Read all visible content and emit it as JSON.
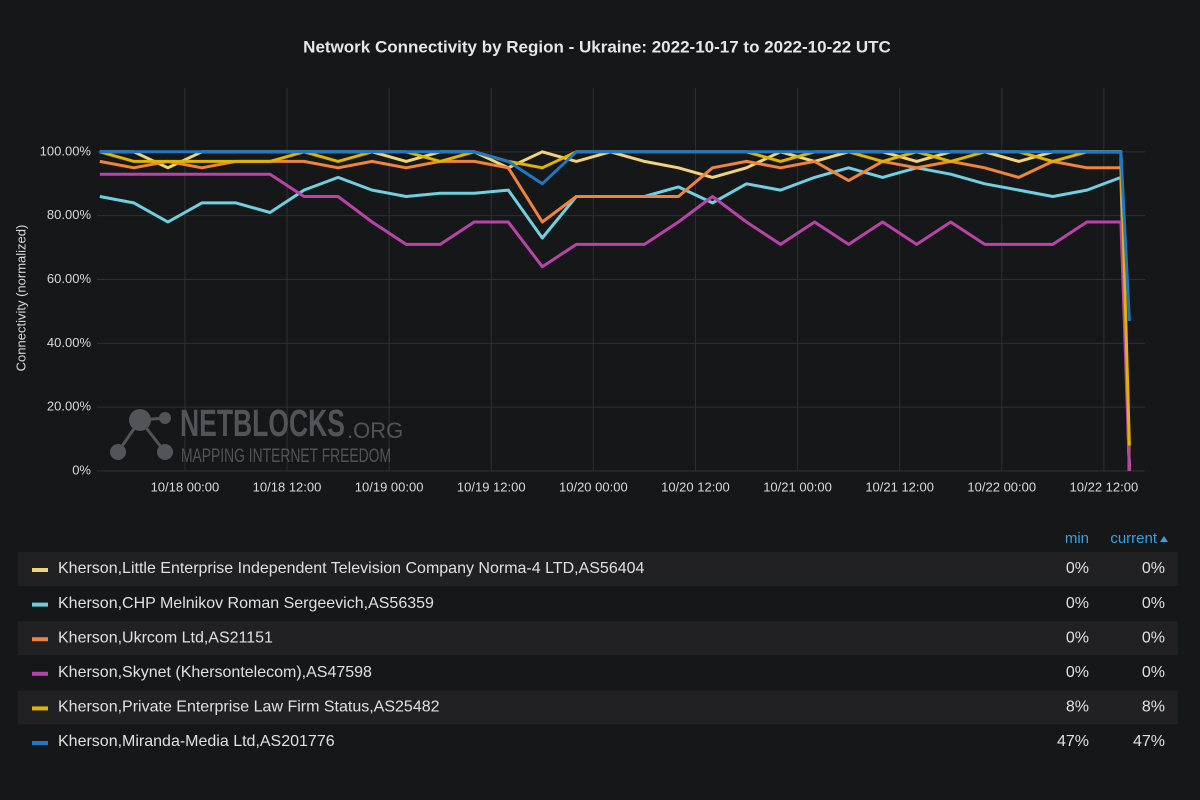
{
  "chart_data": {
    "type": "line",
    "title": "Network Connectivity by Region - Ukraine: 2022-10-17 to 2022-10-22 UTC",
    "y_label": "Connectivity (normalized)",
    "watermark": {
      "title": "NETBLOCKS",
      "suffix": ".ORG",
      "tagline": "MAPPING INTERNET FREEDOM"
    },
    "legend_columns": [
      "min",
      "current"
    ],
    "x": [
      "10/17 14:00",
      "10/17 18:00",
      "10/17 22:00",
      "10/18 02:00",
      "10/18 06:00",
      "10/18 10:00",
      "10/18 14:00",
      "10/18 18:00",
      "10/18 22:00",
      "10/19 02:00",
      "10/19 06:00",
      "10/19 10:00",
      "10/19 14:00",
      "10/19 18:00",
      "10/19 22:00",
      "10/20 02:00",
      "10/20 06:00",
      "10/20 10:00",
      "10/20 14:00",
      "10/20 18:00",
      "10/20 22:00",
      "10/21 02:00",
      "10/21 06:00",
      "10/21 10:00",
      "10/21 14:00",
      "10/21 18:00",
      "10/21 22:00",
      "10/22 02:00",
      "10/22 06:00",
      "10/22 10:00",
      "10/22 14:00",
      "10/22 15:00"
    ],
    "xlim": [
      "10/17 13:40",
      "10/22 16:50"
    ],
    "xticks": [
      "10/18 00:00",
      "10/18 12:00",
      "10/19 00:00",
      "10/19 12:00",
      "10/20 00:00",
      "10/20 12:00",
      "10/21 00:00",
      "10/21 12:00",
      "10/22 00:00",
      "10/22 12:00"
    ],
    "ylim": [
      0,
      120
    ],
    "yticks": [
      {
        "value": 0,
        "label": "0%"
      },
      {
        "value": 20,
        "label": "20.00%"
      },
      {
        "value": 40,
        "label": "40.00%"
      },
      {
        "value": 60,
        "label": "60.00%"
      },
      {
        "value": 80,
        "label": "80.00%"
      },
      {
        "value": 100,
        "label": "100.00%"
      }
    ],
    "grid": true,
    "series": [
      {
        "name": "Kherson,Little Enterprise Independent Television Company Norma-4 LTD,AS56404",
        "color": "#f2d37a",
        "values": [
          100,
          100,
          95,
          100,
          100,
          100,
          100,
          100,
          100,
          97,
          100,
          100,
          95,
          100,
          97,
          100,
          97,
          95,
          92,
          95,
          100,
          97,
          100,
          100,
          97,
          100,
          100,
          97,
          100,
          100,
          100,
          0
        ],
        "min": {
          "value": 0,
          "label": "0%"
        },
        "current": {
          "value": 0,
          "label": "0%"
        }
      },
      {
        "name": "Kherson,CHP Melnikov Roman Sergeevich,AS56359",
        "color": "#6ed0e0",
        "values": [
          86,
          84,
          78,
          84,
          84,
          81,
          88,
          92,
          88,
          86,
          87,
          87,
          88,
          73,
          86,
          86,
          86,
          89,
          84,
          90,
          88,
          92,
          95,
          92,
          95,
          93,
          90,
          88,
          86,
          88,
          92,
          0
        ],
        "min": {
          "value": 0,
          "label": "0%"
        },
        "current": {
          "value": 0,
          "label": "0%"
        }
      },
      {
        "name": "Kherson,Ukrcom Ltd,AS21151",
        "color": "#ef843c",
        "values": [
          97,
          95,
          97,
          95,
          97,
          97,
          97,
          95,
          97,
          95,
          97,
          97,
          95,
          78,
          86,
          86,
          86,
          86,
          95,
          97,
          95,
          97,
          91,
          97,
          95,
          97,
          95,
          92,
          97,
          95,
          95,
          0
        ],
        "min": {
          "value": 0,
          "label": "0%"
        },
        "current": {
          "value": 0,
          "label": "0%"
        }
      },
      {
        "name": "Kherson,Skynet (Khersontelecom),AS47598",
        "color": "#ba43a9",
        "values": [
          93,
          93,
          93,
          93,
          93,
          93,
          86,
          86,
          78,
          71,
          71,
          78,
          78,
          64,
          71,
          71,
          71,
          78,
          86,
          78,
          71,
          78,
          71,
          78,
          71,
          78,
          71,
          71,
          71,
          78,
          78,
          0
        ],
        "min": {
          "value": 0,
          "label": "0%"
        },
        "current": {
          "value": 0,
          "label": "0%"
        }
      },
      {
        "name": "Kherson,Private Enterprise Law Firm Status,AS25482",
        "color": "#e0b400",
        "values": [
          100,
          97,
          97,
          97,
          97,
          97,
          100,
          97,
          100,
          100,
          97,
          100,
          97,
          95,
          100,
          100,
          100,
          100,
          100,
          100,
          97,
          100,
          100,
          97,
          100,
          97,
          100,
          100,
          97,
          100,
          100,
          8
        ],
        "min": {
          "value": 8,
          "label": "8%"
        },
        "current": {
          "value": 8,
          "label": "8%"
        }
      },
      {
        "name": "Kherson,Miranda-Media Ltd,AS201776",
        "color": "#1f78c1",
        "values": [
          100,
          100,
          100,
          100,
          100,
          100,
          100,
          100,
          100,
          100,
          100,
          100,
          97,
          90,
          100,
          100,
          100,
          100,
          100,
          100,
          100,
          100,
          100,
          100,
          100,
          100,
          100,
          100,
          100,
          100,
          100,
          47
        ],
        "min": {
          "value": 47,
          "label": "47%"
        },
        "current": {
          "value": 47,
          "label": "47%"
        }
      }
    ]
  }
}
